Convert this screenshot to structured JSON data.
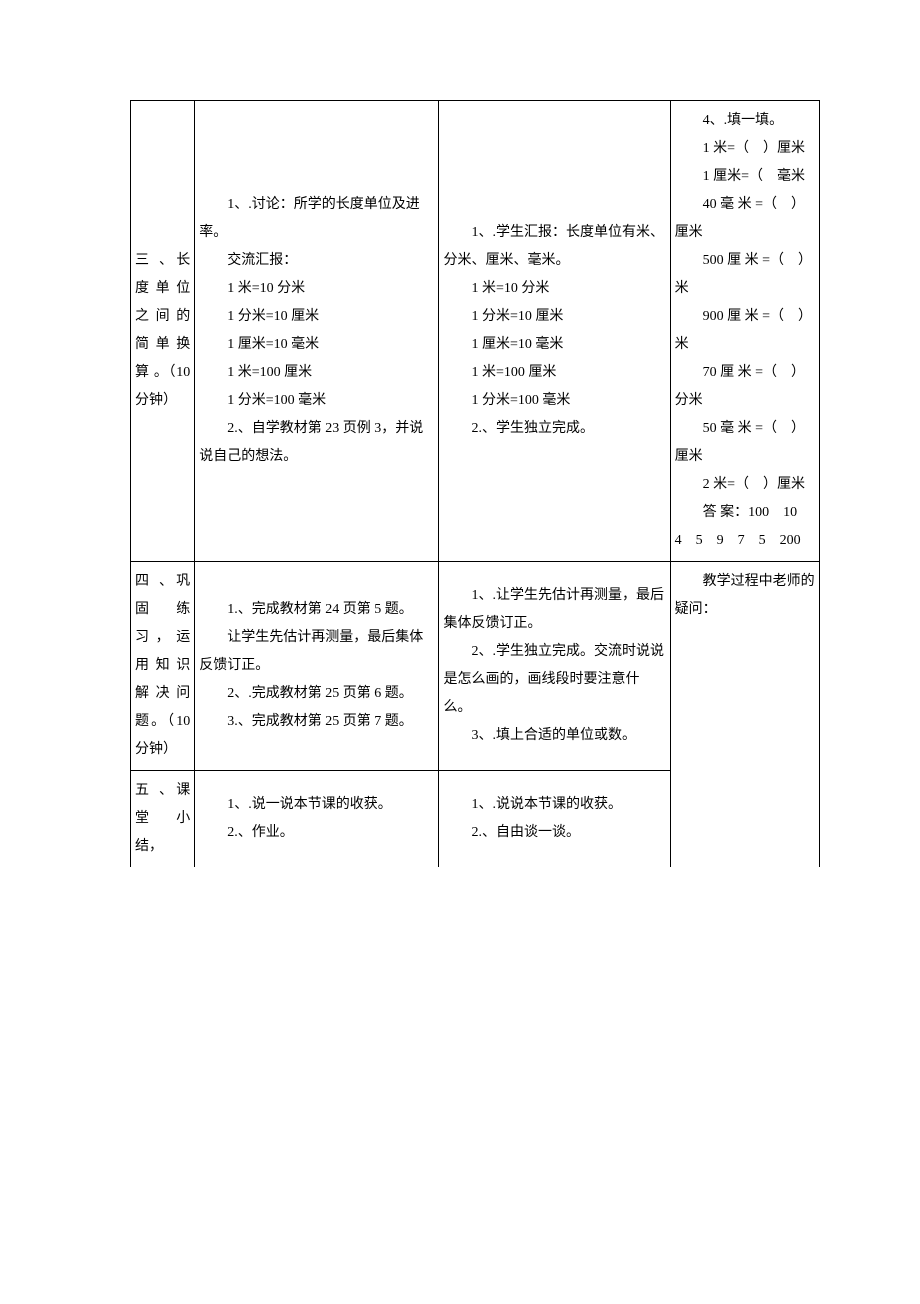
{
  "row1": {
    "col1": "三 、长 度 单 位 之 间 的 简 单 换 算 。（10 分钟）",
    "col2": {
      "p1": "1、.讨论：所学的长度单位及进率。",
      "p2": "交流汇报：",
      "p3": "1 米=10 分米",
      "p4": "1 分米=10 厘米",
      "p5": "1 厘米=10 毫米",
      "p6": "1 米=100 厘米",
      "p7": "1 分米=100 毫米",
      "p8": "2.、自学教材第 23 页例 3，并说说自己的想法。"
    },
    "col3": {
      "p1": "1、.学生汇报：长度单位有米、分米、厘米、毫米。",
      "p2": "1 米=10 分米",
      "p3": "1 分米=10 厘米",
      "p4": "1 厘米=10 毫米",
      "p5": "1 米=100 厘米",
      "p6": "1 分米=100 毫米",
      "p7": "2.、学生独立完成。"
    },
    "col4": {
      "p1": "4、.填一填。",
      "p2": "1 米=（　）厘米",
      "p3": "1 厘米=（　毫米",
      "p4": "40 毫 米 =（　）厘米",
      "p5": "500 厘 米 =（　）米",
      "p6": "900 厘 米 =（　）米",
      "p7": "70 厘 米 =（　）分米",
      "p8": "50 毫 米 =（　）厘米",
      "p9": "2 米=（　）厘米",
      "p10": "答 案：100　10　4　5　9　7　5　200"
    }
  },
  "row2": {
    "col1": "四 、巩 固 练习，运 用 知 识 解 决 问题。（10 分钟）",
    "col2": {
      "p1": "1.、完成教材第 24 页第 5 题。",
      "p2": "让学生先估计再测量，最后集体反馈订正。",
      "p3": "2、.完成教材第 25 页第 6 题。",
      "p4": "3.、完成教材第 25 页第 7 题。"
    },
    "col3": {
      "p1": "1、.让学生先估计再测量，最后集体反馈订正。",
      "p2": "2、.学生独立完成。交流时说说是怎么画的，画线段时要注意什么。",
      "p3": "3、.填上合适的单位或数。"
    },
    "col4": {
      "p1": "教学过程中老师的疑问："
    }
  },
  "row3": {
    "col1": "五 、课 堂 小结，",
    "col2": {
      "p1": "1、.说一说本节课的收获。",
      "p2": "2.、作业。"
    },
    "col3": {
      "p1": "1、.说说本节课的收获。",
      "p2": "2.、自由谈一谈。"
    }
  }
}
